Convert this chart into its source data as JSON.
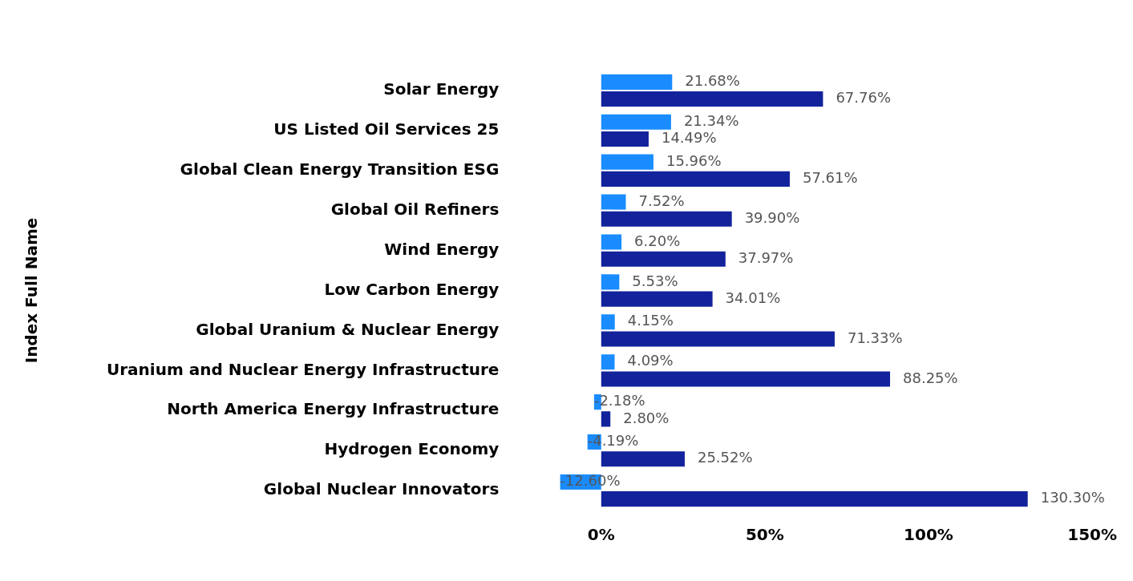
{
  "chart_data": {
    "type": "bar",
    "orientation": "horizontal",
    "ylabel": "Index Full Name",
    "categories": [
      "Solar Energy",
      "US Listed Oil Services 25",
      "Global Clean Energy Transition ESG",
      "Global Oil Refiners",
      "Wind Energy",
      "Low Carbon Energy",
      "Global Uranium & Nuclear Energy",
      "Uranium and Nuclear Energy Infrastructure",
      "North America Energy Infrastructure",
      "Hydrogen Economy",
      "Global Nuclear Innovators"
    ],
    "series": [
      {
        "color": "#1a8cff",
        "values": [
          21.68,
          21.34,
          15.96,
          7.52,
          6.2,
          5.53,
          4.15,
          4.09,
          -2.18,
          -4.19,
          -12.6
        ],
        "value_labels": [
          "21.68%",
          "21.34%",
          "15.96%",
          "7.52%",
          "6.20%",
          "5.53%",
          "4.15%",
          "4.09%",
          "-2.18%",
          "-4.19%",
          "-12.60%"
        ]
      },
      {
        "color": "#13239c",
        "values": [
          67.76,
          14.49,
          57.61,
          39.9,
          37.97,
          34.01,
          71.33,
          88.25,
          2.8,
          25.52,
          130.3
        ],
        "value_labels": [
          "67.76%",
          "14.49%",
          "57.61%",
          "39.90%",
          "37.97%",
          "34.01%",
          "71.33%",
          "88.25%",
          "2.80%",
          "25.52%",
          "130.30%"
        ]
      }
    ],
    "xlim": [
      -12.6,
      150
    ],
    "xticks": [
      {
        "value": 0,
        "label": "0%"
      },
      {
        "value": 50,
        "label": "50%"
      },
      {
        "value": 100,
        "label": "100%"
      },
      {
        "value": 150,
        "label": "150%"
      }
    ],
    "grid": false,
    "legend": false
  }
}
